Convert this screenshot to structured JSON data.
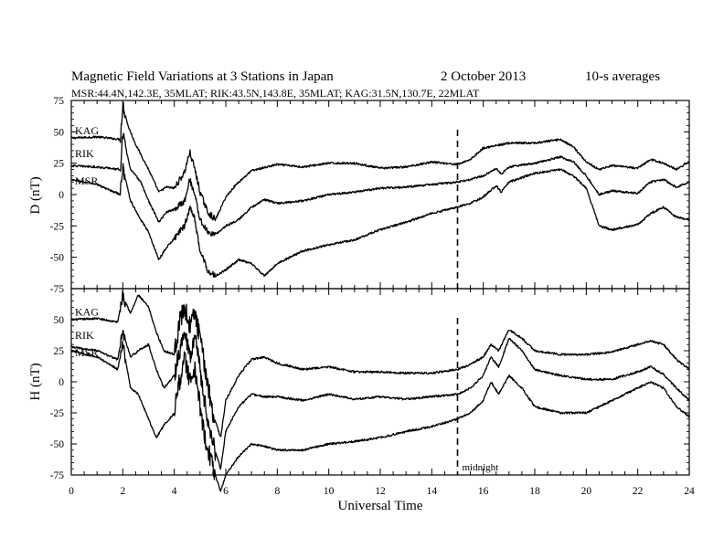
{
  "chart_data": {
    "type": "line",
    "title": "Magnetic Field Variations at 3 Stations in Japan",
    "date_text": "2   October 2013",
    "averaging_text": "10-s averages",
    "station_line": "MSR:44.4N,142.3E, 35MLAT;  RIK:43.5N,143.8E, 35MLAT;  KAG:31.5N,130.7E, 22MLAT",
    "xlabel": "Universal Time",
    "xlim": [
      0,
      24
    ],
    "x_ticks": [
      "0",
      "2",
      "4",
      "6",
      "8",
      "10",
      "12",
      "14",
      "16",
      "18",
      "20",
      "22",
      "24"
    ],
    "midnight_ut": 15,
    "midnight_label": "midnight",
    "panels": [
      {
        "ylabel": "D (nT)",
        "ylim": [
          -75,
          75
        ],
        "y_ticks": [
          "75",
          "50",
          "25",
          "0",
          "-25",
          "-50",
          "-75"
        ],
        "series": [
          {
            "name": "KAG",
            "x": [
              0,
              1,
              1.9,
              2.0,
              2.2,
              2.5,
              3.0,
              3.4,
              3.7,
              4.0,
              4.4,
              4.6,
              4.8,
              5.0,
              5.3,
              5.6,
              6.0,
              6.4,
              7.0,
              8.0,
              9.0,
              10.0,
              11.0,
              12.0,
              13.0,
              14.0,
              15.0,
              15.5,
              16.0,
              16.5,
              17.0,
              18.0,
              19.0,
              19.5,
              20.0,
              20.5,
              21.0,
              22.0,
              22.5,
              23.0,
              23.5,
              24.0
            ],
            "y": [
              45,
              46,
              44,
              72,
              55,
              40,
              20,
              2,
              6,
              5,
              18,
              34,
              20,
              2,
              -14,
              -20,
              -2,
              8,
              19,
              24,
              22,
              25,
              25,
              21,
              22,
              26,
              24,
              28,
              37,
              39,
              41,
              41,
              44,
              38,
              26,
              20,
              23,
              21,
              28,
              25,
              20,
              26
            ]
          },
          {
            "name": "RIK",
            "x": [
              0,
              1,
              1.9,
              2.0,
              2.3,
              2.7,
              3.0,
              3.4,
              3.7,
              4.0,
              4.4,
              4.6,
              4.8,
              5.0,
              5.3,
              5.6,
              6.0,
              6.5,
              7.0,
              7.5,
              8.0,
              9.0,
              10.0,
              11.0,
              12.0,
              13.0,
              14.0,
              15.0,
              15.5,
              16.0,
              16.5,
              16.7,
              17.0,
              18.0,
              19.0,
              19.5,
              20.0,
              20.5,
              21.0,
              22.0,
              22.5,
              23.0,
              23.5,
              24.0
            ],
            "y": [
              23,
              22,
              20,
              48,
              20,
              10,
              -5,
              -22,
              -14,
              -12,
              -5,
              12,
              0,
              -20,
              -30,
              -32,
              -25,
              -20,
              -10,
              -4,
              -7,
              -5,
              0,
              2,
              5,
              6,
              8,
              10,
              12,
              15,
              21,
              16,
              22,
              25,
              30,
              26,
              15,
              0,
              3,
              1,
              10,
              12,
              6,
              10
            ]
          },
          {
            "name": "MSR",
            "x": [
              0,
              1,
              1.9,
              2.0,
              2.3,
              2.7,
              3.0,
              3.4,
              3.7,
              4.0,
              4.4,
              4.6,
              4.8,
              5.0,
              5.3,
              5.6,
              6.0,
              6.5,
              7.0,
              7.5,
              8.0,
              9.0,
              10.0,
              11.0,
              12.0,
              13.0,
              14.0,
              15.0,
              15.5,
              16.0,
              16.5,
              16.7,
              17.0,
              18.0,
              19.0,
              19.5,
              20.0,
              20.5,
              21.0,
              22.0,
              22.5,
              23.0,
              23.5,
              24.0
            ],
            "y": [
              12,
              8,
              0,
              22,
              -5,
              -20,
              -30,
              -52,
              -42,
              -35,
              -25,
              -10,
              -20,
              -45,
              -60,
              -65,
              -60,
              -52,
              -55,
              -65,
              -55,
              -45,
              -40,
              -36,
              -28,
              -22,
              -15,
              -10,
              -7,
              -2,
              7,
              2,
              10,
              17,
              20,
              15,
              5,
              -25,
              -28,
              -24,
              -15,
              -10,
              -18,
              -20
            ]
          }
        ]
      },
      {
        "ylabel": "H (nT)",
        "ylim": [
          -75,
          75
        ],
        "y_ticks": [
          "75",
          "50",
          "25",
          "0",
          "-25",
          "-50",
          "-75"
        ],
        "series": [
          {
            "name": "KAG",
            "x": [
              0,
              1,
              1.8,
              2.0,
              2.3,
              2.6,
              3.0,
              3.3,
              3.6,
              4.0,
              4.2,
              4.4,
              4.6,
              4.8,
              5.0,
              5.2,
              5.5,
              5.8,
              6.0,
              6.5,
              7.0,
              7.5,
              8.0,
              9.0,
              10.0,
              11.0,
              12.0,
              13.0,
              14.0,
              15.0,
              15.5,
              16.0,
              16.3,
              16.6,
              17.0,
              17.5,
              18.0,
              19.0,
              20.0,
              21.0,
              22.0,
              22.5,
              23.0,
              23.5,
              24.0
            ],
            "y": [
              50,
              51,
              48,
              70,
              55,
              70,
              60,
              40,
              25,
              22,
              48,
              60,
              45,
              55,
              35,
              10,
              -25,
              -45,
              -15,
              5,
              18,
              20,
              15,
              10,
              12,
              8,
              8,
              7,
              7,
              10,
              14,
              20,
              30,
              25,
              42,
              35,
              25,
              22,
              22,
              24,
              30,
              33,
              30,
              18,
              10
            ]
          },
          {
            "name": "RIK",
            "x": [
              0,
              1,
              1.8,
              2.0,
              2.3,
              2.6,
              3.0,
              3.3,
              3.6,
              4.0,
              4.2,
              4.4,
              4.6,
              4.8,
              5.0,
              5.2,
              5.5,
              5.8,
              6.0,
              6.5,
              7.0,
              7.5,
              8.0,
              9.0,
              10.0,
              11.0,
              12.0,
              13.0,
              14.0,
              15.0,
              15.5,
              16.0,
              16.3,
              16.6,
              17.0,
              17.5,
              18.0,
              19.0,
              20.0,
              21.0,
              22.0,
              22.5,
              23.0,
              23.5,
              24.0
            ],
            "y": [
              28,
              25,
              18,
              40,
              20,
              25,
              30,
              10,
              -5,
              5,
              25,
              45,
              20,
              40,
              10,
              -20,
              -50,
              -70,
              -40,
              -20,
              -10,
              -12,
              -12,
              -15,
              -10,
              -14,
              -12,
              -14,
              -12,
              -10,
              -5,
              5,
              20,
              12,
              35,
              25,
              10,
              5,
              2,
              2,
              8,
              12,
              6,
              -5,
              -15
            ]
          },
          {
            "name": "MSR",
            "x": [
              0,
              1,
              1.8,
              2.0,
              2.3,
              2.6,
              3.0,
              3.3,
              3.6,
              4.0,
              4.2,
              4.4,
              4.6,
              4.8,
              5.0,
              5.2,
              5.5,
              5.8,
              6.0,
              6.5,
              7.0,
              7.5,
              8.0,
              9.0,
              10.0,
              11.0,
              12.0,
              13.0,
              14.0,
              15.0,
              15.5,
              16.0,
              16.3,
              16.6,
              17.0,
              17.5,
              18.0,
              19.0,
              20.0,
              21.0,
              22.0,
              22.5,
              23.0,
              23.5,
              24.0
            ],
            "y": [
              25,
              20,
              10,
              30,
              -5,
              -10,
              -30,
              -45,
              -35,
              -25,
              0,
              20,
              0,
              10,
              -20,
              -45,
              -70,
              -88,
              -75,
              -60,
              -50,
              -52,
              -55,
              -55,
              -50,
              -48,
              -45,
              -40,
              -36,
              -30,
              -25,
              -15,
              0,
              -10,
              5,
              -5,
              -20,
              -25,
              -25,
              -15,
              -5,
              0,
              -5,
              -20,
              -28
            ]
          }
        ]
      }
    ]
  }
}
